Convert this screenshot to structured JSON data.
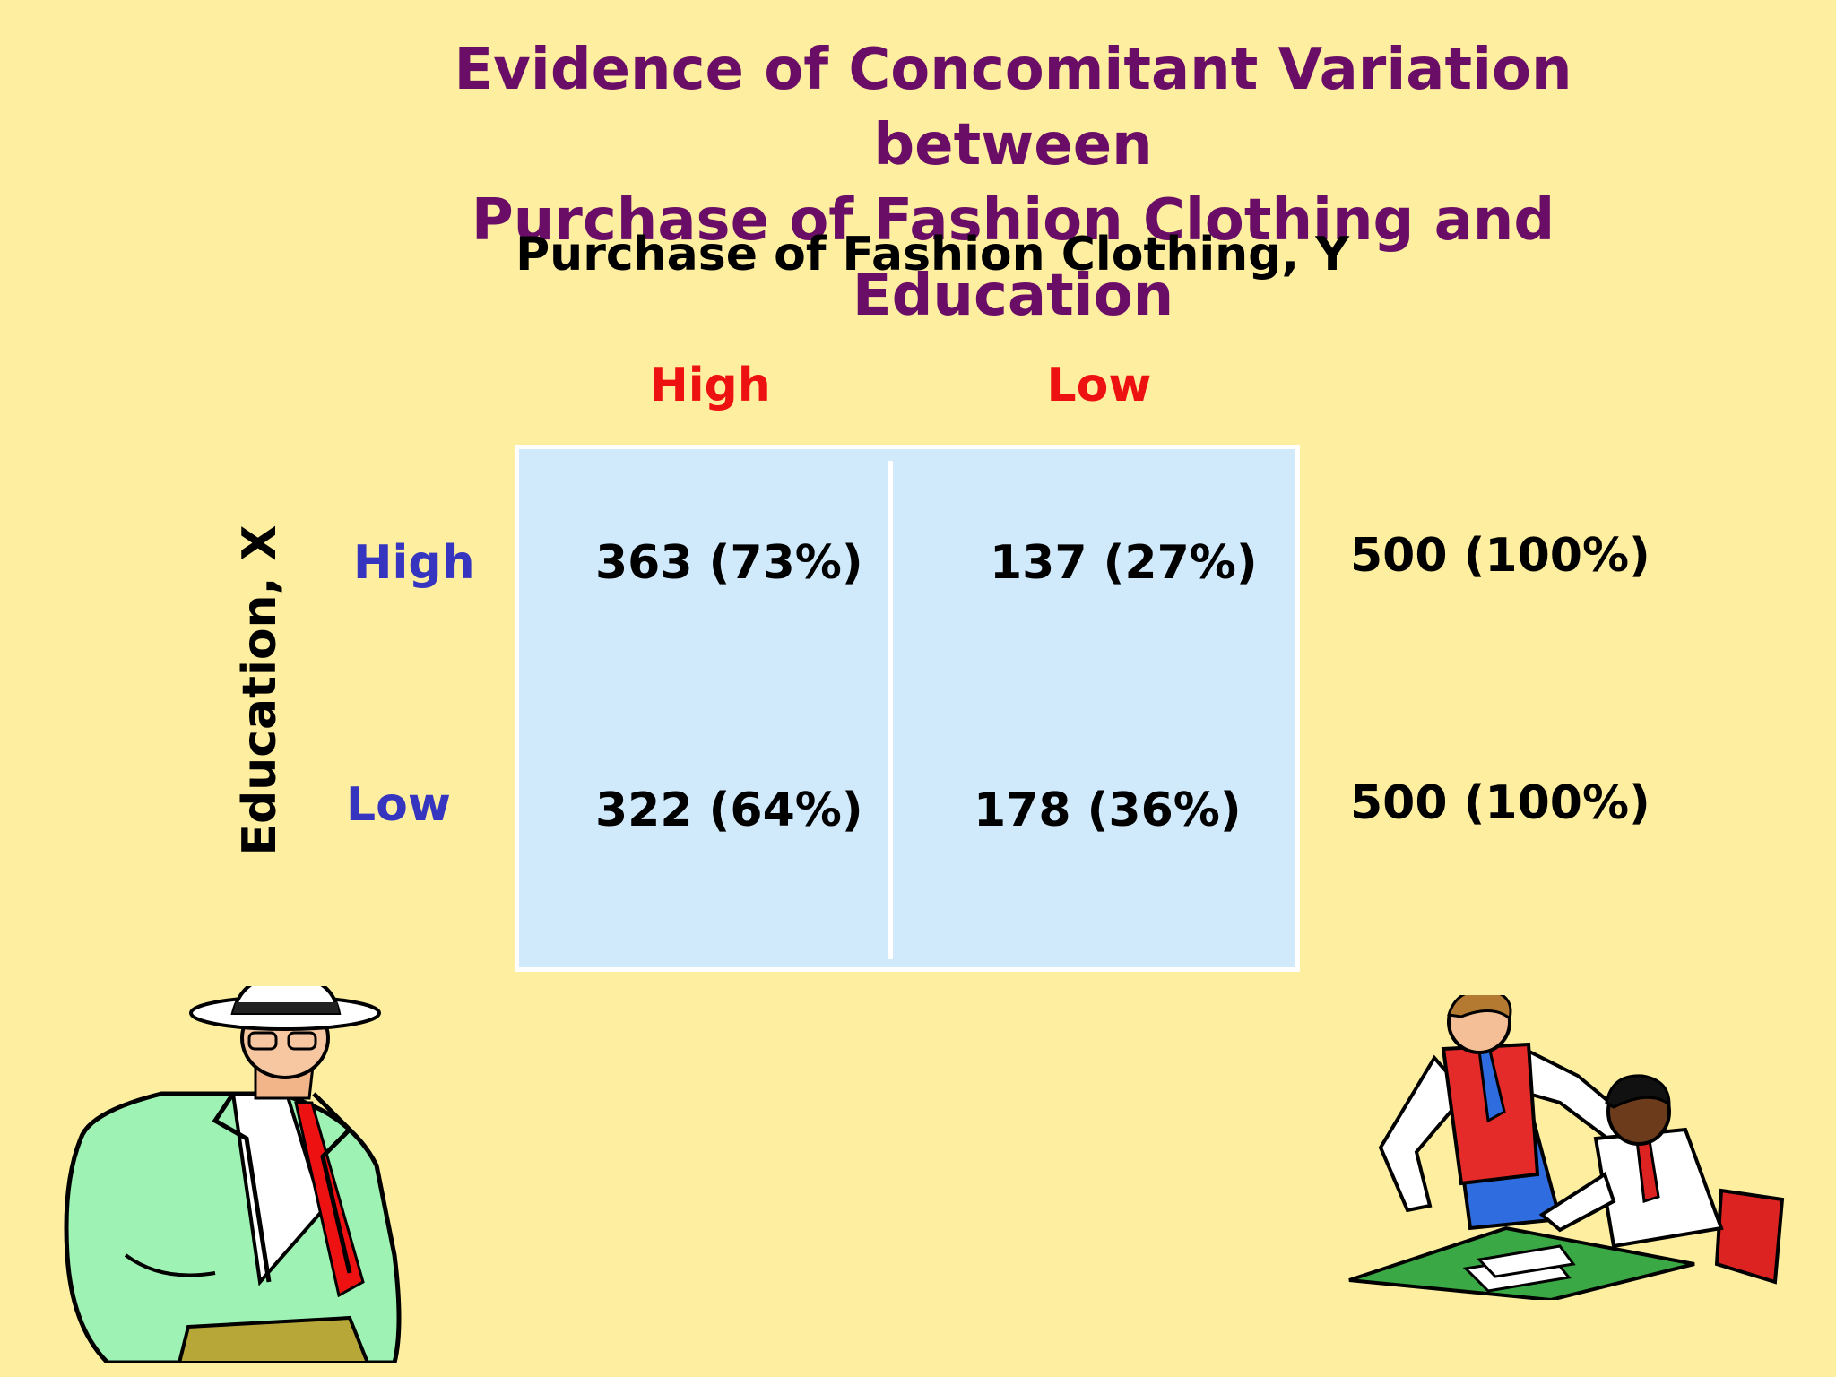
{
  "title": {
    "line1": "Evidence of Concomitant Variation between",
    "line2": "Purchase of Fashion Clothing and Education"
  },
  "subtitle": "Purchase of Fashion Clothing, Y",
  "columns": {
    "high": "High",
    "low": "Low"
  },
  "row_axis_label": "Education, X",
  "rows": [
    {
      "label": "High",
      "high_cell": "363 (73%)",
      "low_cell": "137 (27%)",
      "total": "500 (100%)"
    },
    {
      "label": "Low",
      "high_cell": "322 (64%)",
      "low_cell": "178 (36%)",
      "total": "500 (100%)"
    }
  ],
  "colors": {
    "background": "#fdeea0",
    "title": "#6a0d67",
    "column_header": "#ee1111",
    "row_header": "#3535c0",
    "table_fill": "#d0eafc"
  }
}
